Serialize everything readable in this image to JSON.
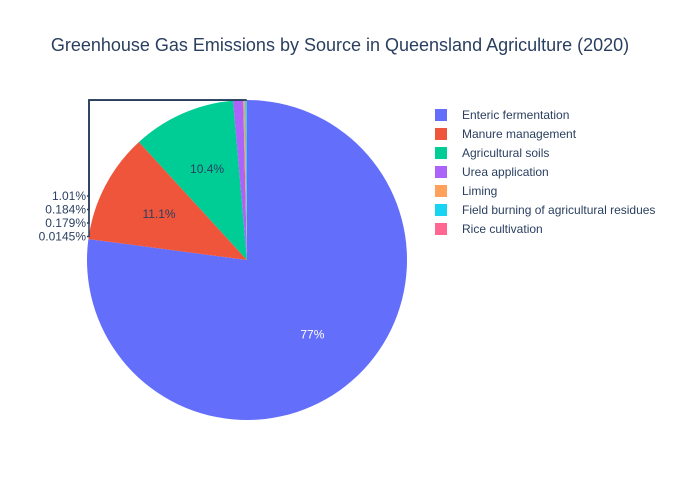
{
  "chart_data": {
    "type": "pie",
    "title": "Greenhouse Gas Emissions by Source in Queensland Agriculture (2020)",
    "slices": [
      {
        "label": "Enteric fermentation",
        "percent": 77,
        "percent_label": "77%",
        "color": "#636efa"
      },
      {
        "label": "Manure management",
        "percent": 11.1,
        "percent_label": "11.1%",
        "color": "#ef553b"
      },
      {
        "label": "Agricultural soils",
        "percent": 10.4,
        "percent_label": "10.4%",
        "color": "#00cc96"
      },
      {
        "label": "Urea application",
        "percent": 1.01,
        "percent_label": "1.01%",
        "color": "#ab63fa"
      },
      {
        "label": "Liming",
        "percent": 0.184,
        "percent_label": "0.184%",
        "color": "#ffa15a"
      },
      {
        "label": "Field burning of agricultural residues",
        "percent": 0.179,
        "percent_label": "0.179%",
        "color": "#19d3f3"
      },
      {
        "label": "Rice cultivation",
        "percent": 0.0145,
        "percent_label": "0.0145%",
        "color": "#ff6692"
      }
    ],
    "direction": "clockwise",
    "legend_placement": "right"
  }
}
